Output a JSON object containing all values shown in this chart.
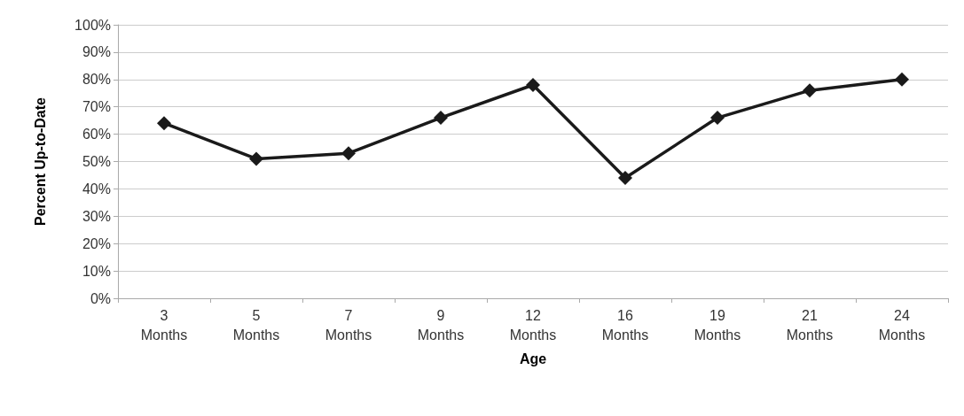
{
  "chart_data": {
    "type": "line",
    "xlabel": "Age",
    "ylabel": "Percent Up-to-Date",
    "categories": [
      "3\nMonths",
      "5\nMonths",
      "7\nMonths",
      "9\nMonths",
      "12\nMonths",
      "16\nMonths",
      "19\nMonths",
      "21\nMonths",
      "24\nMonths"
    ],
    "series": [
      {
        "color": "#1a1a1a",
        "values": [
          64,
          51,
          53,
          66,
          78,
          44,
          66,
          76,
          80
        ]
      }
    ],
    "ylim": [
      0,
      100
    ],
    "yticks": [
      {
        "value": 0,
        "label": "0%"
      },
      {
        "value": 10,
        "label": "10%"
      },
      {
        "value": 20,
        "label": "20%"
      },
      {
        "value": 30,
        "label": "30%"
      },
      {
        "value": 40,
        "label": "40%"
      },
      {
        "value": 50,
        "label": "50%"
      },
      {
        "value": 60,
        "label": "60%"
      },
      {
        "value": 70,
        "label": "70%"
      },
      {
        "value": 80,
        "label": "80%"
      },
      {
        "value": 90,
        "label": "90%"
      },
      {
        "value": 100,
        "label": "100%"
      }
    ],
    "grid": "y",
    "marker": "diamond",
    "line_style": "solid"
  }
}
